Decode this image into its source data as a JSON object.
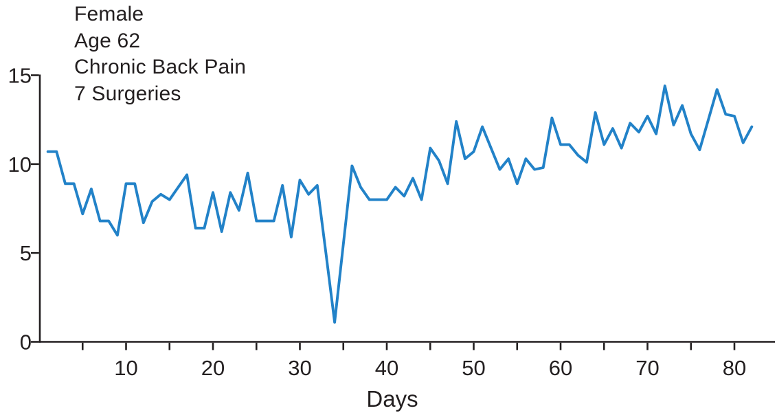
{
  "chart_data": {
    "type": "line",
    "title": "",
    "annotation_lines": [
      "Female",
      "Age 62",
      "Chronic Back Pain",
      "7 Surgeries"
    ],
    "xlabel": "Days",
    "ylabel": "",
    "x": [
      1,
      2,
      3,
      4,
      5,
      6,
      7,
      8,
      9,
      10,
      11,
      12,
      13,
      14,
      15,
      16,
      17,
      18,
      19,
      20,
      21,
      22,
      23,
      24,
      25,
      26,
      27,
      28,
      29,
      30,
      31,
      32,
      33,
      34,
      35,
      36,
      37,
      38,
      39,
      40,
      41,
      42,
      43,
      44,
      45,
      46,
      47,
      48,
      49,
      50,
      51,
      52,
      53,
      54,
      55,
      56,
      57,
      58,
      59,
      60,
      61,
      62,
      63,
      64,
      65,
      66,
      67,
      68,
      69,
      70,
      71,
      72,
      73,
      74,
      75,
      76,
      77,
      78,
      79,
      80,
      81,
      82
    ],
    "values": [
      10.7,
      10.7,
      8.9,
      8.9,
      7.2,
      8.6,
      6.8,
      6.8,
      6.0,
      8.9,
      8.9,
      6.7,
      7.9,
      8.3,
      8.0,
      8.7,
      9.4,
      6.4,
      6.4,
      8.4,
      6.2,
      8.4,
      7.4,
      9.5,
      6.8,
      6.8,
      6.8,
      8.8,
      5.9,
      9.1,
      8.3,
      8.8,
      5.0,
      1.1,
      5.5,
      9.9,
      8.7,
      8.0,
      8.0,
      8.0,
      8.7,
      8.2,
      9.2,
      8.0,
      10.9,
      10.2,
      8.9,
      12.4,
      10.3,
      10.7,
      12.1,
      10.9,
      9.7,
      10.3,
      8.9,
      10.3,
      9.7,
      9.8,
      12.6,
      11.1,
      11.1,
      10.5,
      10.1,
      12.9,
      11.1,
      12.0,
      10.9,
      12.3,
      11.8,
      12.7,
      11.7,
      14.4,
      12.2,
      13.3,
      11.7,
      10.8,
      12.5,
      14.2,
      12.8,
      12.7,
      11.2,
      12.1
    ],
    "xlim": [
      0,
      84
    ],
    "ylim": [
      0,
      15
    ],
    "y_ticks": [
      0,
      5,
      10,
      15
    ],
    "x_major_ticks": [
      10,
      20,
      30,
      40,
      50,
      60,
      70,
      80
    ],
    "x_minor_ticks": [
      5,
      15,
      25,
      35,
      45,
      55,
      65,
      75
    ],
    "grid": false,
    "legend_position": "none",
    "line_color": "#2282c8",
    "axis_color": "#231f20"
  }
}
